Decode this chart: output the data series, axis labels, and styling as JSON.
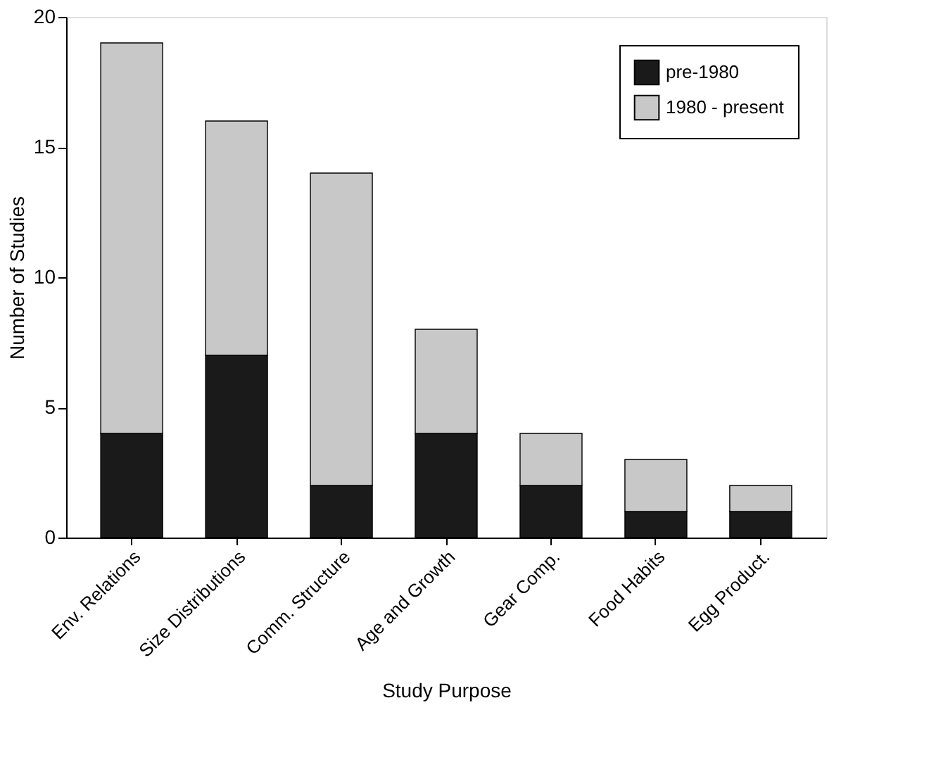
{
  "chart_data": {
    "type": "bar",
    "stacked": true,
    "xlabel": "Study Purpose",
    "ylabel": "Number of Studies",
    "categories": [
      "Env. Relations",
      "Size Distributions",
      "Comm. Structure",
      "Age and Growth",
      "Gear Comp.",
      "Food Habits",
      "Egg Product."
    ],
    "series": [
      {
        "name": "pre-1980",
        "color": "#1a1a1a",
        "values": [
          4,
          7,
          2,
          4,
          2,
          1,
          1
        ]
      },
      {
        "name": "1980 - present",
        "color": "#c8c8c8",
        "values": [
          15,
          9,
          12,
          4,
          2,
          2,
          1
        ]
      }
    ],
    "ylim": [
      0,
      20
    ],
    "yticks": [
      0,
      5,
      10,
      15,
      20
    ],
    "grid": false,
    "legend": "top right"
  }
}
